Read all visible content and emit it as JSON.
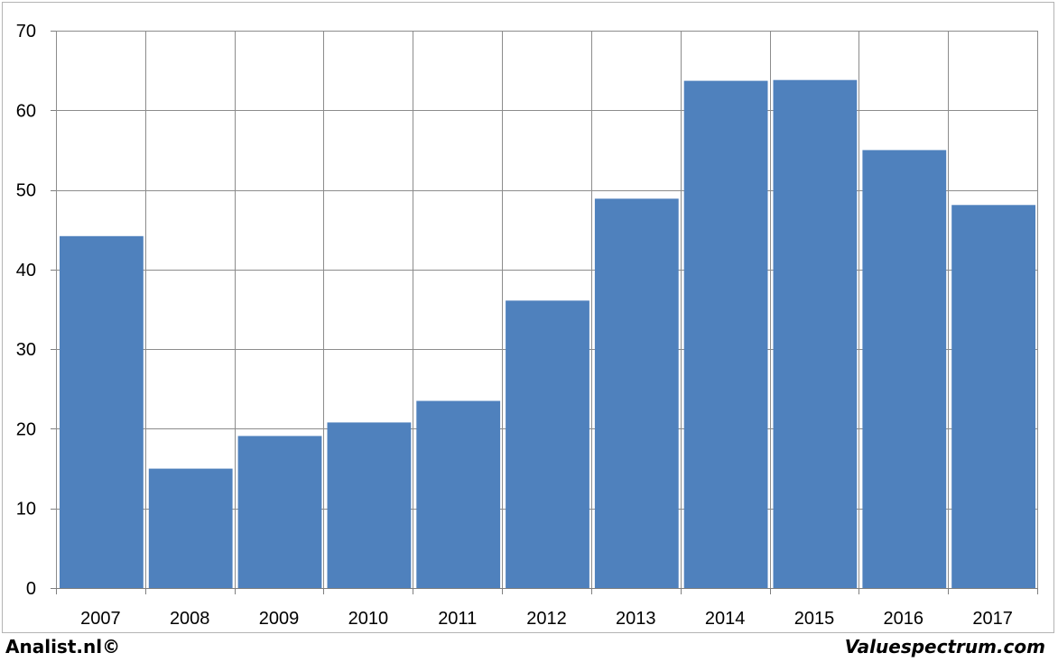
{
  "chart_data": {
    "type": "bar",
    "categories": [
      "2007",
      "2008",
      "2009",
      "2010",
      "2011",
      "2012",
      "2013",
      "2014",
      "2015",
      "2016",
      "2017"
    ],
    "values": [
      44.2,
      15.0,
      19.1,
      20.8,
      23.5,
      36.1,
      48.9,
      63.7,
      63.8,
      55.0,
      48.1
    ],
    "title": "",
    "xlabel": "",
    "ylabel": "",
    "ylim": [
      0,
      70
    ],
    "yticks": [
      0,
      10,
      20,
      30,
      40,
      50,
      60,
      70
    ],
    "grid": true,
    "bar_color": "#4f81bd",
    "grid_color": "#8c8c8c"
  },
  "footer": {
    "left_text": "Analist.nl©",
    "right_text": "Valuespectrum.com"
  }
}
